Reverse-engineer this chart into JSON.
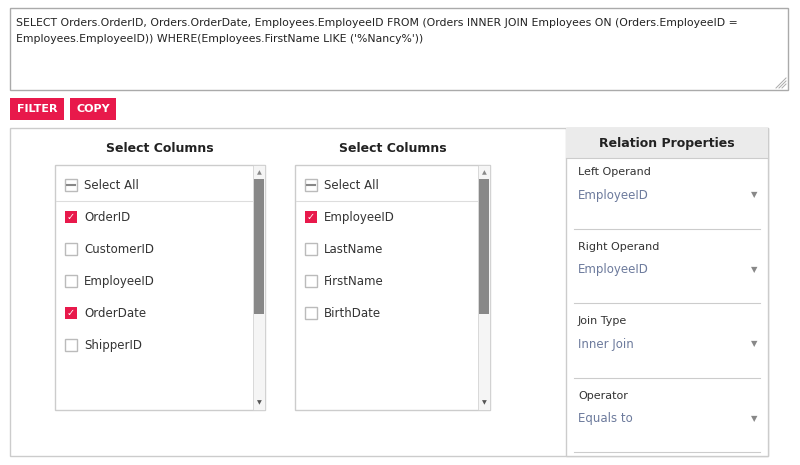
{
  "bg_color": "#ffffff",
  "sql_text_line1": "SELECT Orders.OrderID, Orders.OrderDate, Employees.EmployeeID FROM (Orders INNER JOIN Employees ON (Orders.EmployeeID =",
  "sql_text_line2": "Employees.EmployeeID)) WHERE(Employees.FirstName LIKE ('%Nancy%'))",
  "sql_border_color": "#aaaaaa",
  "sql_bg": "#ffffff",
  "btn_filter_text": "FILTER",
  "btn_copy_text": "COPY",
  "btn_color": "#e8194b",
  "btn_text_color": "#ffffff",
  "outer_panel_border": "#cccccc",
  "col1_header": "Select Columns",
  "col1_items": [
    "Select All",
    "OrderID",
    "CustomerID",
    "EmployeeID",
    "OrderDate",
    "ShipperID"
  ],
  "col1_checked": [
    false,
    true,
    false,
    false,
    true,
    false
  ],
  "col1_partial": [
    true,
    false,
    false,
    false,
    false,
    false
  ],
  "col2_header": "Select Columns",
  "col2_items": [
    "Select All",
    "EmployeeID",
    "LastName",
    "FirstName",
    "BirthDate"
  ],
  "col2_checked": [
    false,
    true,
    false,
    false,
    false
  ],
  "col2_partial": [
    true,
    false,
    false,
    false,
    false
  ],
  "rel_header": "Relation Properties",
  "rel_header_bg": "#ebebeb",
  "rel_sections": [
    {
      "label": "Left Operand",
      "value": "EmployeeID",
      "label_color": "#333333",
      "value_color": "#6c7a9c"
    },
    {
      "label": "Right Operand",
      "value": "EmployeeID",
      "label_color": "#333333",
      "value_color": "#6c7a9c"
    },
    {
      "label": "Join Type",
      "value": "Inner Join",
      "label_color": "#333333",
      "value_color": "#6c7a9c"
    },
    {
      "label": "Operator",
      "value": "Equals to",
      "label_color": "#333333",
      "value_color": "#6c7a9c"
    }
  ],
  "check_color": "#e8194b",
  "check_border": "#bbbbbb",
  "scrollbar_color": "#888888",
  "list_border": "#cccccc",
  "sep_color": "#cccccc"
}
